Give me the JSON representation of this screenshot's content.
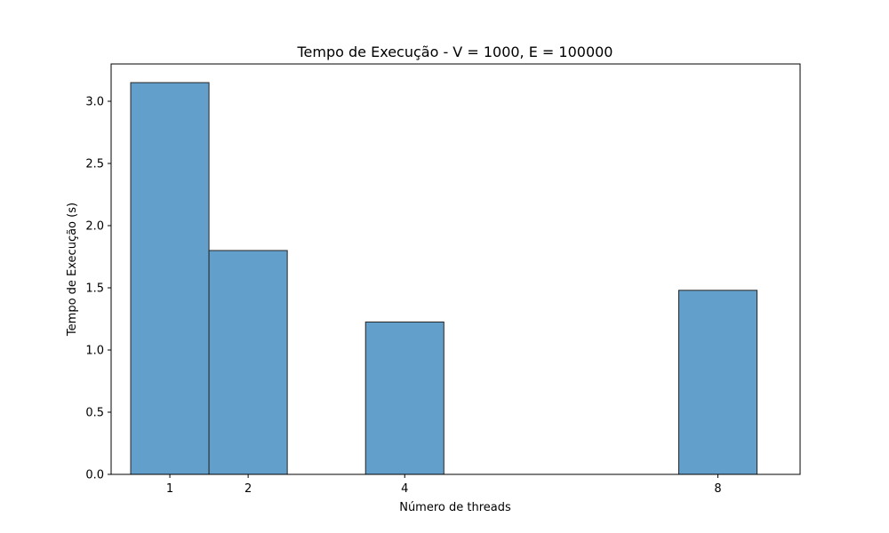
{
  "chart_data": {
    "type": "bar",
    "title": "Tempo de Execução - V = 1000, E = 100000",
    "xlabel": "Número de threads",
    "ylabel": "Tempo de Execução (s)",
    "x": [
      1,
      2,
      4,
      8
    ],
    "values": [
      3.15,
      1.8,
      1.225,
      1.48
    ],
    "bar_width": 1,
    "xlim": [
      0.25,
      9.05
    ],
    "ylim": [
      0,
      3.3
    ],
    "yticks": [
      0.0,
      0.5,
      1.0,
      1.5,
      2.0,
      2.5,
      3.0
    ],
    "ytick_labels": [
      "0.0",
      "0.5",
      "1.0",
      "1.5",
      "2.0",
      "2.5",
      "3.0"
    ],
    "xticks": [
      1,
      2,
      4,
      8
    ],
    "xtick_labels": [
      "1",
      "2",
      "4",
      "8"
    ],
    "grid": false,
    "legend": "none",
    "bar_color": "#629fca",
    "bar_edge_color": "#262626"
  }
}
